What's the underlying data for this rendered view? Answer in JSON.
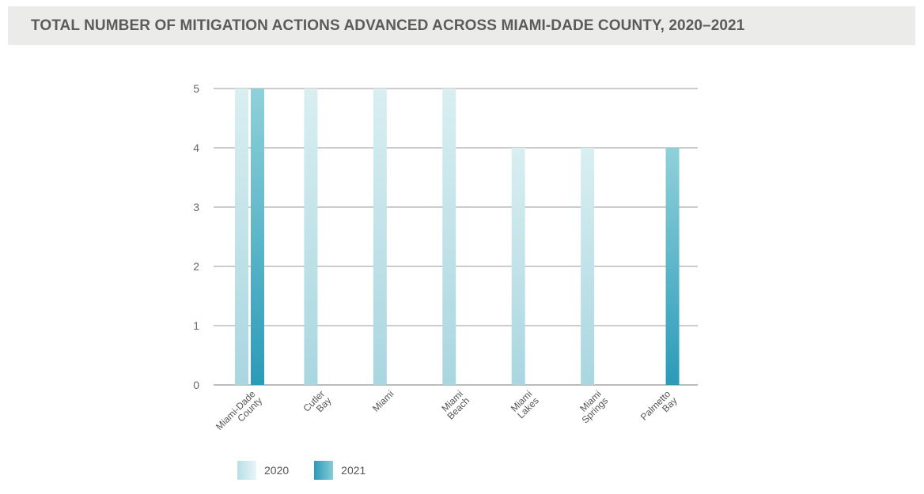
{
  "title": "TOTAL NUMBER OF MITIGATION ACTIONS ADVANCED ACROSS MIAMI-DADE COUNTY, 2020–2021",
  "colors": {
    "series_2020": "#bfe3e8",
    "series_2021": "#3aa6bf"
  },
  "chart_data": {
    "type": "bar",
    "title": "TOTAL NUMBER OF MITIGATION ACTIONS ADVANCED ACROSS MIAMI-DADE COUNTY, 2020–2021",
    "categories": [
      [
        "Miami-Dade",
        "County"
      ],
      [
        "Cutler",
        "Bay"
      ],
      [
        "Miami"
      ],
      [
        "Miami",
        "Beach"
      ],
      [
        "Miami",
        "Lakes"
      ],
      [
        "Miami",
        "Springs"
      ],
      [
        "Palmetto",
        "Bay"
      ]
    ],
    "series": [
      {
        "name": "2020",
        "values": [
          5,
          5,
          5,
          5,
          4,
          4,
          null
        ]
      },
      {
        "name": "2021",
        "values": [
          5,
          null,
          null,
          null,
          null,
          null,
          4
        ]
      }
    ],
    "ylim": [
      0,
      5
    ],
    "yticks": [
      0,
      1,
      2,
      3,
      4,
      5
    ],
    "grid": true,
    "legend_position": "bottom-left"
  }
}
